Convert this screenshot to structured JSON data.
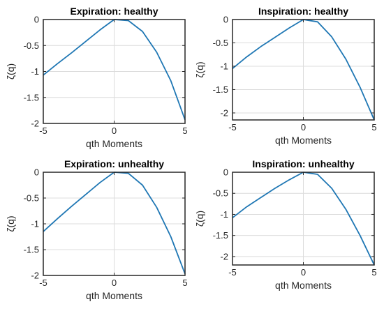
{
  "chart_data": [
    {
      "type": "line",
      "title": "Expiration: healthy",
      "xlabel": "qth Moments",
      "ylabel": "ζ(q)",
      "xlim": [
        -5,
        5
      ],
      "ylim": [
        -2,
        0
      ],
      "xticks": [
        "-5",
        "0",
        "5"
      ],
      "yticks": [
        "0",
        "-0.5",
        "-1",
        "-1.5",
        "-2"
      ],
      "grid": true,
      "series": [
        {
          "x": [
            -5,
            -4,
            -3,
            -2,
            -1,
            0,
            1,
            2,
            3,
            4,
            5
          ],
          "y": [
            -1.07,
            -0.85,
            -0.64,
            -0.42,
            -0.2,
            0,
            -0.02,
            -0.23,
            -0.63,
            -1.18,
            -1.93
          ]
        }
      ]
    },
    {
      "type": "line",
      "title": "Inspiration: healthy",
      "xlabel": "qth Moments",
      "ylabel": "ζ(q)",
      "xlim": [
        -5,
        5
      ],
      "ylim": [
        -2.15,
        0
      ],
      "xticks": [
        "-5",
        "0",
        "5"
      ],
      "yticks": [
        "0",
        "-0.5",
        "-1",
        "-1.5",
        "-2"
      ],
      "grid": true,
      "series": [
        {
          "x": [
            -5,
            -4,
            -3,
            -2,
            -1,
            0,
            1,
            2,
            3,
            4,
            5
          ],
          "y": [
            -1.05,
            -0.8,
            -0.58,
            -0.38,
            -0.18,
            0,
            -0.05,
            -0.37,
            -0.85,
            -1.45,
            -2.15
          ]
        }
      ]
    },
    {
      "type": "line",
      "title": "Expiration: unhealthy",
      "xlabel": "qth Moments",
      "ylabel": "ζ(q)",
      "xlim": [
        -5,
        5
      ],
      "ylim": [
        -2,
        0
      ],
      "xticks": [
        "-5",
        "0",
        "5"
      ],
      "yticks": [
        "0",
        "-0.5",
        "-1",
        "-1.5",
        "-2"
      ],
      "grid": true,
      "series": [
        {
          "x": [
            -5,
            -4,
            -3,
            -2,
            -1,
            0,
            1,
            2,
            3,
            4,
            5
          ],
          "y": [
            -1.15,
            -0.9,
            -0.66,
            -0.43,
            -0.2,
            0,
            -0.02,
            -0.25,
            -0.68,
            -1.25,
            -1.97
          ]
        }
      ]
    },
    {
      "type": "line",
      "title": "Inspiration: unhealthy",
      "xlabel": "qth Moments",
      "ylabel": "ζ(q)",
      "xlim": [
        -5,
        5
      ],
      "ylim": [
        -2.2,
        0
      ],
      "xticks": [
        "-5",
        "0",
        "5"
      ],
      "yticks": [
        "0",
        "-0.5",
        "-1",
        "-1.5",
        "-2"
      ],
      "grid": true,
      "series": [
        {
          "x": [
            -5,
            -4,
            -3,
            -2,
            -1,
            0,
            1,
            2,
            3,
            4,
            5
          ],
          "y": [
            -1.08,
            -0.82,
            -0.6,
            -0.38,
            -0.18,
            0,
            -0.05,
            -0.38,
            -0.88,
            -1.5,
            -2.2
          ]
        }
      ]
    }
  ],
  "colors": {
    "line": "#1f77b4",
    "grid": "#dcdcdc",
    "axis": "#262626"
  }
}
